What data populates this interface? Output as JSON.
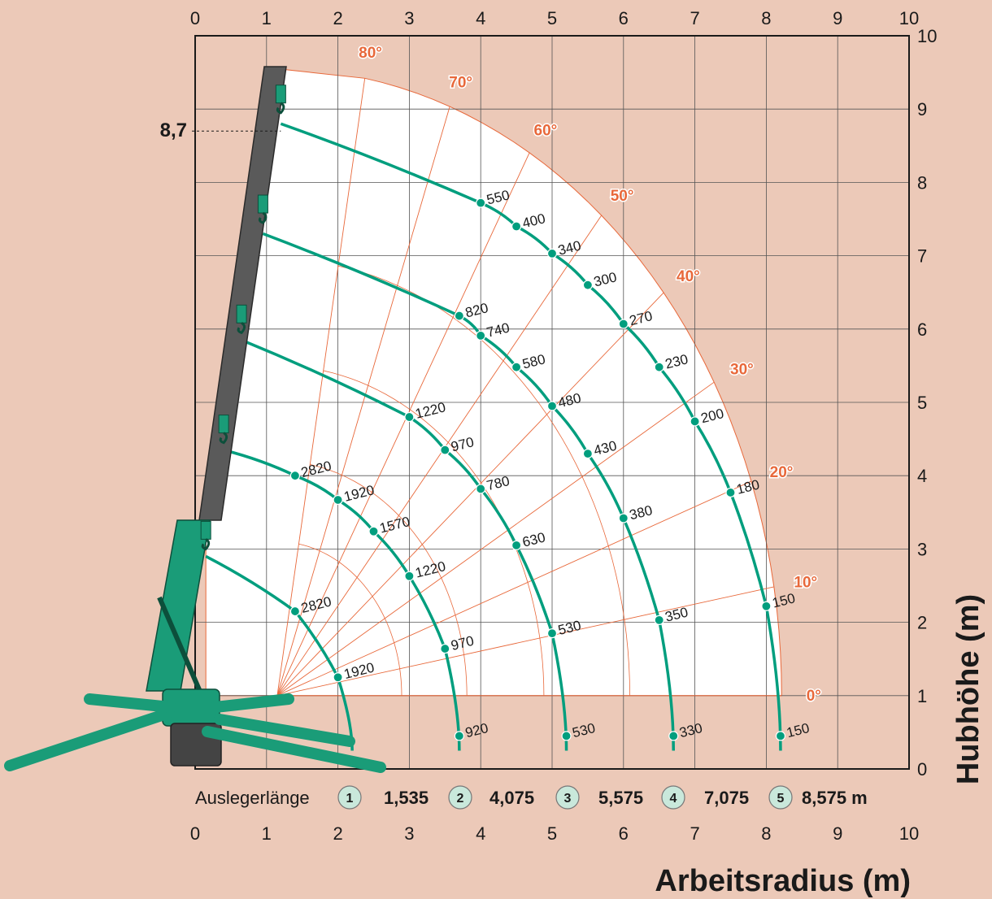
{
  "chart_data": {
    "type": "line",
    "xlabel": "Arbeitsradius (m)",
    "ylabel": "Hubhöhe (m)",
    "xlim": [
      0,
      10
    ],
    "ylim": [
      0,
      10
    ],
    "x_ticks": [
      "0",
      "1",
      "2",
      "3",
      "4",
      "5",
      "6",
      "7",
      "8",
      "9",
      "10"
    ],
    "y_ticks": [
      "0",
      "1",
      "2",
      "3",
      "4",
      "5",
      "6",
      "7",
      "8",
      "9",
      "10"
    ],
    "grid": true,
    "max_height_label": "8,7",
    "max_height_value": 8.7,
    "angle_labels": [
      "0°",
      "10°",
      "20°",
      "30°",
      "40°",
      "50°",
      "60°",
      "70°",
      "80°"
    ],
    "boom_length_caption": "Auslegerlänge",
    "boom_sections": [
      {
        "number": "1",
        "length": "1,535"
      },
      {
        "number": "2",
        "length": "4,075"
      },
      {
        "number": "3",
        "length": "5,575"
      },
      {
        "number": "4",
        "length": "7,075"
      },
      {
        "number": "5",
        "length": "8,575 m"
      }
    ],
    "series": [
      {
        "name": "1",
        "points": [
          {
            "x": 1.4,
            "y": 2.15,
            "load": "2820"
          },
          {
            "x": 2.0,
            "y": 1.25,
            "load": "1920"
          }
        ]
      },
      {
        "name": "2",
        "points": [
          {
            "x": 1.4,
            "y": 4.0,
            "load": "2820"
          },
          {
            "x": 2.0,
            "y": 3.67,
            "load": "1920"
          },
          {
            "x": 2.5,
            "y": 3.24,
            "load": "1570"
          },
          {
            "x": 3.0,
            "y": 2.63,
            "load": "1220"
          },
          {
            "x": 3.5,
            "y": 1.64,
            "load": "970"
          },
          {
            "x": 3.7,
            "y": 0.45,
            "load": "920"
          }
        ]
      },
      {
        "name": "3",
        "points": [
          {
            "x": 3.0,
            "y": 4.8,
            "load": "1220"
          },
          {
            "x": 3.5,
            "y": 4.35,
            "load": "970"
          },
          {
            "x": 4.0,
            "y": 3.82,
            "load": "780"
          },
          {
            "x": 4.5,
            "y": 3.05,
            "load": "630"
          },
          {
            "x": 5.0,
            "y": 1.85,
            "load": "530"
          },
          {
            "x": 5.2,
            "y": 0.45,
            "load": "530"
          }
        ]
      },
      {
        "name": "4",
        "points": [
          {
            "x": 3.7,
            "y": 6.18,
            "load": "820"
          },
          {
            "x": 4.0,
            "y": 5.91,
            "load": "740"
          },
          {
            "x": 4.5,
            "y": 5.48,
            "load": "580"
          },
          {
            "x": 5.0,
            "y": 4.95,
            "load": "480"
          },
          {
            "x": 5.5,
            "y": 4.3,
            "load": "430"
          },
          {
            "x": 6.0,
            "y": 3.42,
            "load": "380"
          },
          {
            "x": 6.5,
            "y": 2.03,
            "load": "350"
          },
          {
            "x": 6.7,
            "y": 0.45,
            "load": "330"
          }
        ]
      },
      {
        "name": "5",
        "points": [
          {
            "x": 4.0,
            "y": 7.72,
            "load": "550"
          },
          {
            "x": 4.5,
            "y": 7.4,
            "load": "400"
          },
          {
            "x": 5.0,
            "y": 7.03,
            "load": "340"
          },
          {
            "x": 5.5,
            "y": 6.6,
            "load": "300"
          },
          {
            "x": 6.0,
            "y": 6.07,
            "load": "270"
          },
          {
            "x": 6.5,
            "y": 5.48,
            "load": "230"
          },
          {
            "x": 7.0,
            "y": 4.74,
            "load": "200"
          },
          {
            "x": 7.5,
            "y": 3.77,
            "load": "180"
          },
          {
            "x": 8.0,
            "y": 2.22,
            "load": "150"
          },
          {
            "x": 8.2,
            "y": 0.45,
            "load": "150"
          }
        ]
      }
    ],
    "colors": {
      "background": "#ecc9b8",
      "curve": "#009e7e",
      "radial": "#e8683a",
      "boom": "#5a5a5a",
      "machine": "#1a9c78"
    }
  }
}
